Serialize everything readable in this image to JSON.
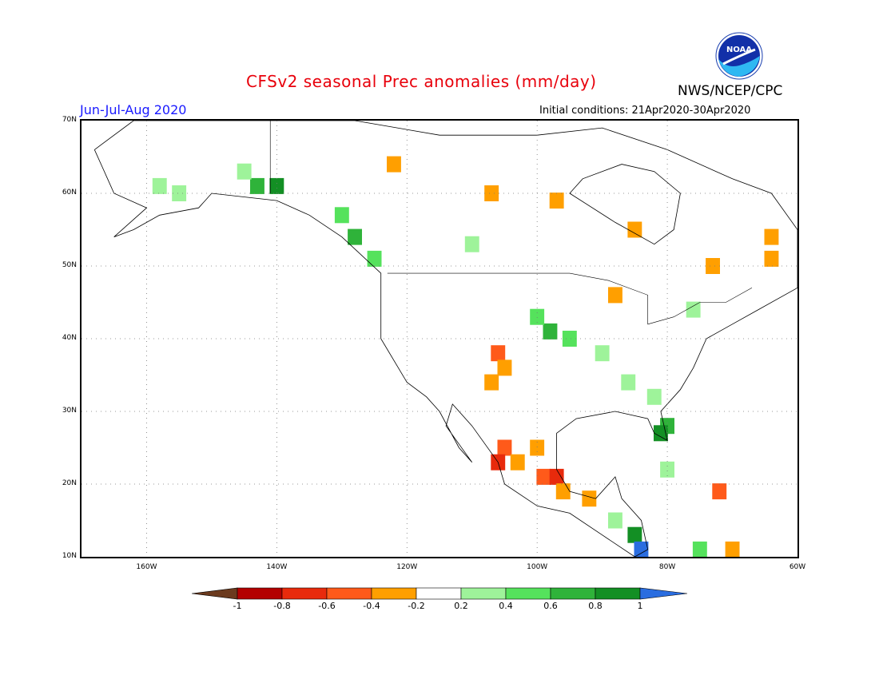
{
  "header": {
    "title": "CFSv2 seasonal Prec anomalies (mm/day)",
    "agency": "NWS/NCEP/CPC",
    "season": "Jun-Jul-Aug 2020",
    "initial_conditions": "Initial conditions: 21Apr2020-30Apr2020",
    "logo_text": "NOAA"
  },
  "map": {
    "lon_range": [
      -170,
      -60
    ],
    "lat_range": [
      10,
      70
    ],
    "lat_labels": [
      "70N",
      "60N",
      "50N",
      "40N",
      "30N",
      "20N",
      "10N"
    ],
    "lon_labels": [
      "160W",
      "140W",
      "120W",
      "100W",
      "80W",
      "60W"
    ]
  },
  "legend": {
    "labels": [
      "-1",
      "-0.8",
      "-0.6",
      "-0.4",
      "-0.2",
      "0.2",
      "0.4",
      "0.6",
      "0.8",
      "1"
    ],
    "colors": [
      "#6b3a1e",
      "#b30000",
      "#e82a0c",
      "#ff5a1a",
      "#ff9f00",
      "#ffffff",
      "#9ef39a",
      "#55e25c",
      "#2fb33a",
      "#138f24",
      "#2a6de0"
    ]
  },
  "anomaly_cells": [
    {
      "lon": -143,
      "lat": 61,
      "value": 0.7
    },
    {
      "lon": -140,
      "lat": 61,
      "value": 0.8
    },
    {
      "lon": -145,
      "lat": 63,
      "value": 0.3
    },
    {
      "lon": -130,
      "lat": 57,
      "value": 0.5
    },
    {
      "lon": -128,
      "lat": 54,
      "value": 0.6
    },
    {
      "lon": -125,
      "lat": 51,
      "value": 0.4
    },
    {
      "lon": -155,
      "lat": 60,
      "value": 0.3
    },
    {
      "lon": -158,
      "lat": 61,
      "value": 0.3
    },
    {
      "lon": -122,
      "lat": 64,
      "value": -0.3
    },
    {
      "lon": -110,
      "lat": 53,
      "value": 0.3
    },
    {
      "lon": -107,
      "lat": 60,
      "value": -0.3
    },
    {
      "lon": -97,
      "lat": 59,
      "value": -0.3
    },
    {
      "lon": -85,
      "lat": 55,
      "value": -0.3
    },
    {
      "lon": -73,
      "lat": 50,
      "value": -0.3
    },
    {
      "lon": -64,
      "lat": 51,
      "value": -0.3
    },
    {
      "lon": -64,
      "lat": 54,
      "value": -0.3
    },
    {
      "lon": -98,
      "lat": 41,
      "value": 0.6
    },
    {
      "lon": -95,
      "lat": 40,
      "value": 0.5
    },
    {
      "lon": -100,
      "lat": 43,
      "value": 0.4
    },
    {
      "lon": -90,
      "lat": 38,
      "value": 0.3
    },
    {
      "lon": -86,
      "lat": 34,
      "value": 0.3
    },
    {
      "lon": -82,
      "lat": 32,
      "value": 0.3
    },
    {
      "lon": -80,
      "lat": 28,
      "value": 0.7
    },
    {
      "lon": -81,
      "lat": 27,
      "value": 0.8
    },
    {
      "lon": -106,
      "lat": 38,
      "value": -0.5
    },
    {
      "lon": -105,
      "lat": 36,
      "value": -0.3
    },
    {
      "lon": -107,
      "lat": 34,
      "value": -0.3
    },
    {
      "lon": -105,
      "lat": 25,
      "value": -0.6
    },
    {
      "lon": -103,
      "lat": 23,
      "value": -0.3
    },
    {
      "lon": -106,
      "lat": 23,
      "value": -0.7
    },
    {
      "lon": -99,
      "lat": 21,
      "value": -0.6
    },
    {
      "lon": -97,
      "lat": 21,
      "value": -0.7
    },
    {
      "lon": -96,
      "lat": 19,
      "value": -0.4
    },
    {
      "lon": -100,
      "lat": 25,
      "value": -0.4
    },
    {
      "lon": -92,
      "lat": 18,
      "value": -0.3
    },
    {
      "lon": -88,
      "lat": 15,
      "value": 0.3
    },
    {
      "lon": -85,
      "lat": 13,
      "value": 0.8
    },
    {
      "lon": -84,
      "lat": 11,
      "value": 1.1
    },
    {
      "lon": -72,
      "lat": 19,
      "value": -0.6
    },
    {
      "lon": -80,
      "lat": 22,
      "value": 0.3
    },
    {
      "lon": -70,
      "lat": 11,
      "value": -0.3
    },
    {
      "lon": -75,
      "lat": 11,
      "value": 0.4
    },
    {
      "lon": -76,
      "lat": 44,
      "value": 0.3
    },
    {
      "lon": -88,
      "lat": 46,
      "value": -0.3
    }
  ]
}
